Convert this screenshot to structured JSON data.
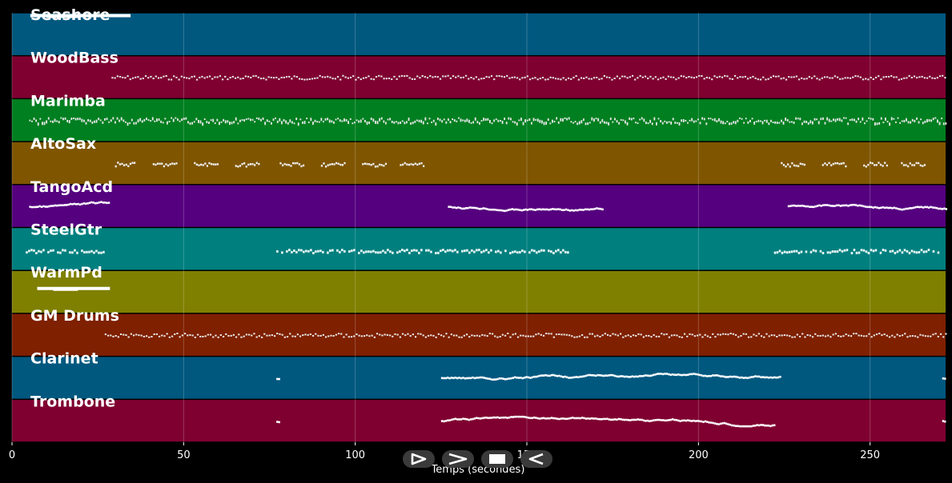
{
  "chart_data": {
    "type": "piano-roll",
    "xlabel": "Temps (secondes)",
    "xlim": [
      0,
      272
    ],
    "xticks": [
      0,
      50,
      100,
      150,
      200,
      250
    ],
    "grid": true,
    "tracks": [
      {
        "name": "Seashore",
        "color": "#00587f",
        "segments": [
          [
            3,
            35
          ]
        ],
        "style": "long"
      },
      {
        "name": "WoodBass",
        "color": "#7f0030",
        "segments": [
          [
            29,
            272
          ]
        ],
        "style": "dense"
      },
      {
        "name": "Marimba",
        "color": "#007f20",
        "segments": [
          [
            5,
            272
          ]
        ],
        "style": "dense-thick"
      },
      {
        "name": "AltoSax",
        "color": "#7f5500",
        "segments": [
          [
            30,
            36
          ],
          [
            41,
            48
          ],
          [
            53,
            60
          ],
          [
            65,
            72
          ],
          [
            78,
            85
          ],
          [
            90,
            97
          ],
          [
            102,
            109
          ],
          [
            113,
            120
          ],
          [
            224,
            231
          ],
          [
            236,
            243
          ],
          [
            248,
            255
          ],
          [
            259,
            266
          ]
        ],
        "style": "phrases"
      },
      {
        "name": "TangoAcd",
        "color": "#55007f",
        "segments": [
          [
            5,
            28
          ],
          [
            127,
            172
          ],
          [
            226,
            272
          ]
        ],
        "style": "melody"
      },
      {
        "name": "SteelGtr",
        "color": "#007f7f",
        "segments": [
          [
            4,
            27
          ],
          [
            77,
            162
          ],
          [
            222,
            270
          ]
        ],
        "style": "chords"
      },
      {
        "name": "WarmPd",
        "color": "#7f7f00",
        "segments": [
          [
            5,
            29
          ]
        ],
        "style": "long"
      },
      {
        "name": "GM Drums",
        "color": "#7f2000",
        "segments": [
          [
            27,
            272
          ]
        ],
        "style": "dense"
      },
      {
        "name": "Clarinet",
        "color": "#00587f",
        "segments": [
          [
            77,
            78
          ],
          [
            125,
            224
          ],
          [
            271,
            272
          ]
        ],
        "style": "melody"
      },
      {
        "name": "Trombone",
        "color": "#7f0030",
        "segments": [
          [
            77,
            78
          ],
          [
            125,
            222
          ],
          [
            271,
            272
          ]
        ],
        "style": "melody"
      }
    ]
  },
  "controls": [
    {
      "name": "play",
      "icon": "play-icon"
    },
    {
      "name": "fast-forward",
      "icon": "fast-forward-icon"
    },
    {
      "name": "stop",
      "icon": "stop-icon"
    },
    {
      "name": "rewind",
      "icon": "rewind-icon"
    }
  ]
}
